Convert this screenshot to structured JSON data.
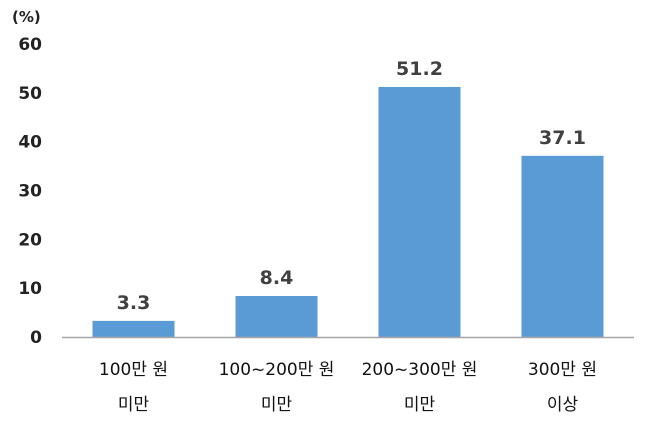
{
  "chart_data": {
    "type": "bar",
    "unit_label": "(%)",
    "categories": [
      [
        "100만 원",
        "미만"
      ],
      [
        "100~200만 원",
        "미만"
      ],
      [
        "200~300만 원",
        "미만"
      ],
      [
        "300만 원",
        "이상"
      ]
    ],
    "values": [
      3.3,
      8.4,
      51.2,
      37.1
    ],
    "value_labels": [
      "3.3",
      "8.4",
      "51.2",
      "37.1"
    ],
    "yticks": [
      "0",
      "10",
      "20",
      "30",
      "40",
      "50",
      "60"
    ],
    "ylim": [
      0,
      60
    ],
    "grid": false,
    "bar_color": "#5b9bd5",
    "axis_color": "#a6a6a6"
  }
}
